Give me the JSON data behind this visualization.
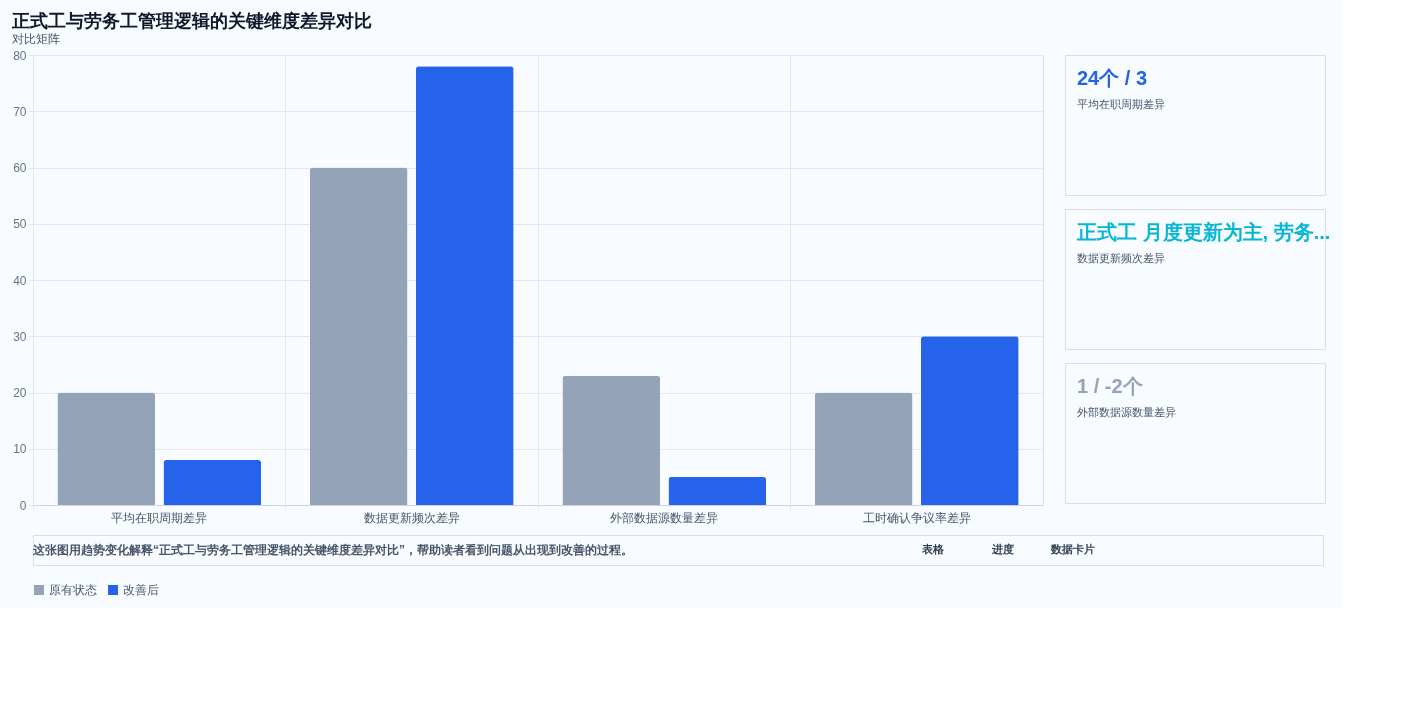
{
  "chart_data": {
    "type": "bar",
    "title": "正式工与劳务工管理逻辑的关键维度差异对比",
    "subtitle": "对比矩阵",
    "categories": [
      "平均在职周期差异",
      "数据更新频次差异",
      "外部数据源数量差异",
      "工时确认争议率差异"
    ],
    "series": [
      {
        "name": "原有状态",
        "color": "#94a3b8",
        "values": [
          20,
          60,
          23,
          20
        ]
      },
      {
        "name": "改善后",
        "color": "#2563eb",
        "values": [
          8,
          78,
          5,
          30
        ]
      }
    ],
    "ylim": [
      0,
      80
    ],
    "yticks": [
      0,
      10,
      20,
      30,
      40,
      50,
      60,
      70,
      80
    ],
    "grid": true,
    "legend": "bottom",
    "annotations": [
      "24个 / 3",
      "平均在职周期差异",
      "正式工 月度更新为主, 劳务...",
      "数据更新频次差异",
      "1 / -2个",
      "外部数据源数量差异",
      "这张图用趋势变化解释“正式工与劳务工管理逻辑的关键维度差异对比”，帮助读者看到问题从出现到改善的过程。",
      "表格",
      "进度",
      "数据卡片"
    ]
  }
}
